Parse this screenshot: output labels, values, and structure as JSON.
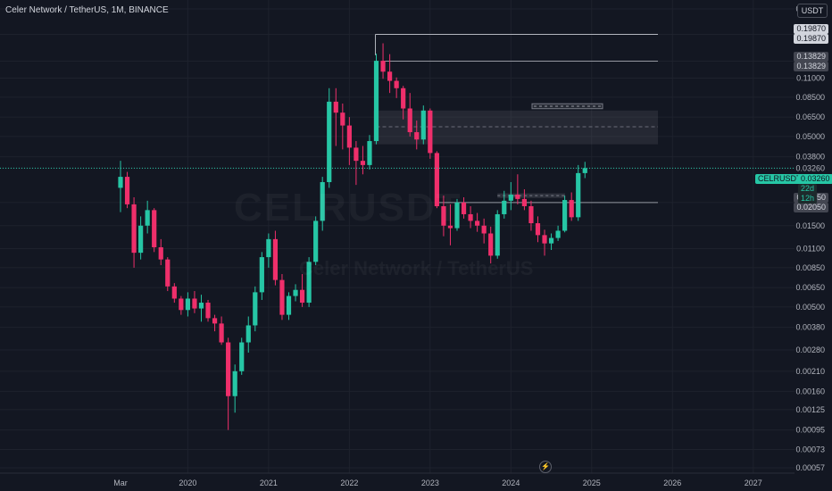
{
  "header": {
    "symbol_title": "Celer Network / TetherUS, 1M, BINANCE"
  },
  "currency_unit": "USDT",
  "watermark": {
    "ticker": "CELRUSDT",
    "name": "Celer Network / TetherUS"
  },
  "price_tag": {
    "symbol": "CELRUSDT",
    "price": "0.03260",
    "countdown": "22d 12h"
  },
  "level_tags": [
    {
      "value": "0.19870",
      "style": "light"
    },
    {
      "value": "0.19870",
      "style": "light"
    },
    {
      "value": "0.13829",
      "style": "dark"
    },
    {
      "value": "0.13829",
      "style": "dark"
    },
    {
      "value": "0.02050",
      "style": "dark"
    },
    {
      "value": "0.02050",
      "style": "dark"
    }
  ],
  "colors": {
    "up": "#26c6a5",
    "down": "#ef2f6b",
    "background": "#131722",
    "grid": "#1e222d",
    "last_price": "#26c6a5"
  },
  "chart_data": {
    "type": "candlestick",
    "title": "Celer Network / TetherUS, 1M, BINANCE",
    "y_scale": "log",
    "ylim": [
      0.00057,
      0.28
    ],
    "y_ticks": [
      "0.28000",
      "0.19870",
      "0.13829",
      "0.11000",
      "0.08500",
      "0.06500",
      "0.05000",
      "0.03800",
      "0.03260",
      "0.02050",
      "0.01500",
      "0.01100",
      "0.00850",
      "0.00650",
      "0.00500",
      "0.00380",
      "0.00280",
      "0.00210",
      "0.00160",
      "0.00125",
      "0.00095",
      "0.00073",
      "0.00057"
    ],
    "x_ticks": [
      "Mar",
      "2020",
      "2021",
      "2022",
      "2023",
      "2024",
      "2025",
      "2026",
      "2027"
    ],
    "x_start": "2019-03",
    "last_price": 0.0326,
    "horizontal_levels": [
      0.1987,
      0.13829,
      0.0205
    ],
    "zones": [
      {
        "low": 0.045,
        "high": 0.071,
        "mid": 0.057
      },
      {
        "low": 0.0218,
        "high": 0.0232
      },
      {
        "low": 0.0728,
        "high": 0.0778
      }
    ],
    "candles": [
      {
        "o": 0.025,
        "h": 0.036,
        "l": 0.018,
        "c": 0.029
      },
      {
        "o": 0.029,
        "h": 0.031,
        "l": 0.019,
        "c": 0.02
      },
      {
        "o": 0.02,
        "h": 0.022,
        "l": 0.0085,
        "c": 0.0104
      },
      {
        "o": 0.0104,
        "h": 0.017,
        "l": 0.0095,
        "c": 0.015
      },
      {
        "o": 0.015,
        "h": 0.021,
        "l": 0.0135,
        "c": 0.0185
      },
      {
        "o": 0.0185,
        "h": 0.019,
        "l": 0.0105,
        "c": 0.0112
      },
      {
        "o": 0.0112,
        "h": 0.0125,
        "l": 0.0088,
        "c": 0.0095
      },
      {
        "o": 0.0095,
        "h": 0.0098,
        "l": 0.0062,
        "c": 0.0066
      },
      {
        "o": 0.0066,
        "h": 0.0069,
        "l": 0.0053,
        "c": 0.0056
      },
      {
        "o": 0.0056,
        "h": 0.0058,
        "l": 0.0045,
        "c": 0.0048
      },
      {
        "o": 0.0048,
        "h": 0.0061,
        "l": 0.0044,
        "c": 0.0056
      },
      {
        "o": 0.0056,
        "h": 0.0062,
        "l": 0.0046,
        "c": 0.0049
      },
      {
        "o": 0.0049,
        "h": 0.0059,
        "l": 0.0041,
        "c": 0.0053
      },
      {
        "o": 0.0053,
        "h": 0.0055,
        "l": 0.0041,
        "c": 0.0043
      },
      {
        "o": 0.0043,
        "h": 0.0045,
        "l": 0.0036,
        "c": 0.004
      },
      {
        "o": 0.004,
        "h": 0.0044,
        "l": 0.003,
        "c": 0.0031
      },
      {
        "o": 0.0031,
        "h": 0.0033,
        "l": 0.00095,
        "c": 0.0015
      },
      {
        "o": 0.0015,
        "h": 0.0023,
        "l": 0.0012,
        "c": 0.0021
      },
      {
        "o": 0.0021,
        "h": 0.0033,
        "l": 0.002,
        "c": 0.0031
      },
      {
        "o": 0.0031,
        "h": 0.0044,
        "l": 0.0027,
        "c": 0.0039
      },
      {
        "o": 0.0039,
        "h": 0.0066,
        "l": 0.0036,
        "c": 0.0061
      },
      {
        "o": 0.0061,
        "h": 0.0105,
        "l": 0.0055,
        "c": 0.0098
      },
      {
        "o": 0.0098,
        "h": 0.0135,
        "l": 0.0085,
        "c": 0.0125
      },
      {
        "o": 0.0125,
        "h": 0.014,
        "l": 0.0067,
        "c": 0.0072
      },
      {
        "o": 0.0072,
        "h": 0.0078,
        "l": 0.0042,
        "c": 0.0045
      },
      {
        "o": 0.0045,
        "h": 0.0061,
        "l": 0.0042,
        "c": 0.0058
      },
      {
        "o": 0.0058,
        "h": 0.0068,
        "l": 0.0054,
        "c": 0.0063
      },
      {
        "o": 0.0063,
        "h": 0.0078,
        "l": 0.005,
        "c": 0.0053
      },
      {
        "o": 0.0053,
        "h": 0.0098,
        "l": 0.005,
        "c": 0.0092
      },
      {
        "o": 0.0092,
        "h": 0.017,
        "l": 0.0088,
        "c": 0.016
      },
      {
        "o": 0.016,
        "h": 0.029,
        "l": 0.014,
        "c": 0.027
      },
      {
        "o": 0.027,
        "h": 0.096,
        "l": 0.025,
        "c": 0.08
      },
      {
        "o": 0.08,
        "h": 0.096,
        "l": 0.044,
        "c": 0.069
      },
      {
        "o": 0.069,
        "h": 0.078,
        "l": 0.042,
        "c": 0.058
      },
      {
        "o": 0.058,
        "h": 0.065,
        "l": 0.034,
        "c": 0.043
      },
      {
        "o": 0.043,
        "h": 0.047,
        "l": 0.026,
        "c": 0.036
      },
      {
        "o": 0.036,
        "h": 0.044,
        "l": 0.03,
        "c": 0.034
      },
      {
        "o": 0.034,
        "h": 0.051,
        "l": 0.032,
        "c": 0.047
      },
      {
        "o": 0.047,
        "h": 0.153,
        "l": 0.045,
        "c": 0.139
      },
      {
        "o": 0.139,
        "h": 0.176,
        "l": 0.109,
        "c": 0.12
      },
      {
        "o": 0.12,
        "h": 0.152,
        "l": 0.09,
        "c": 0.106
      },
      {
        "o": 0.106,
        "h": 0.111,
        "l": 0.084,
        "c": 0.096
      },
      {
        "o": 0.096,
        "h": 0.099,
        "l": 0.063,
        "c": 0.073
      },
      {
        "o": 0.073,
        "h": 0.09,
        "l": 0.05,
        "c": 0.053
      },
      {
        "o": 0.053,
        "h": 0.062,
        "l": 0.042,
        "c": 0.048
      },
      {
        "o": 0.048,
        "h": 0.076,
        "l": 0.045,
        "c": 0.071
      },
      {
        "o": 0.071,
        "h": 0.073,
        "l": 0.037,
        "c": 0.04
      },
      {
        "o": 0.04,
        "h": 0.041,
        "l": 0.019,
        "c": 0.0195
      },
      {
        "o": 0.0195,
        "h": 0.0225,
        "l": 0.013,
        "c": 0.015
      },
      {
        "o": 0.015,
        "h": 0.02,
        "l": 0.0115,
        "c": 0.0145
      },
      {
        "o": 0.0145,
        "h": 0.0215,
        "l": 0.014,
        "c": 0.0205
      },
      {
        "o": 0.0205,
        "h": 0.022,
        "l": 0.0165,
        "c": 0.0175
      },
      {
        "o": 0.0175,
        "h": 0.0195,
        "l": 0.0145,
        "c": 0.016
      },
      {
        "o": 0.016,
        "h": 0.0178,
        "l": 0.0138,
        "c": 0.015
      },
      {
        "o": 0.015,
        "h": 0.0165,
        "l": 0.0118,
        "c": 0.0135
      },
      {
        "o": 0.0135,
        "h": 0.0148,
        "l": 0.009,
        "c": 0.01
      },
      {
        "o": 0.01,
        "h": 0.0185,
        "l": 0.0096,
        "c": 0.0175
      },
      {
        "o": 0.0175,
        "h": 0.024,
        "l": 0.0165,
        "c": 0.021
      },
      {
        "o": 0.021,
        "h": 0.027,
        "l": 0.0185,
        "c": 0.0228
      },
      {
        "o": 0.0228,
        "h": 0.03,
        "l": 0.02,
        "c": 0.0215
      },
      {
        "o": 0.0215,
        "h": 0.0245,
        "l": 0.0185,
        "c": 0.0195
      },
      {
        "o": 0.0195,
        "h": 0.021,
        "l": 0.014,
        "c": 0.0155
      },
      {
        "o": 0.0155,
        "h": 0.017,
        "l": 0.012,
        "c": 0.0132
      },
      {
        "o": 0.0132,
        "h": 0.0142,
        "l": 0.01,
        "c": 0.0118
      },
      {
        "o": 0.0118,
        "h": 0.0135,
        "l": 0.0108,
        "c": 0.0127
      },
      {
        "o": 0.0127,
        "h": 0.015,
        "l": 0.0122,
        "c": 0.014
      },
      {
        "o": 0.014,
        "h": 0.0225,
        "l": 0.0137,
        "c": 0.0212
      },
      {
        "o": 0.0212,
        "h": 0.0235,
        "l": 0.016,
        "c": 0.0168
      },
      {
        "o": 0.0168,
        "h": 0.034,
        "l": 0.016,
        "c": 0.0305
      },
      {
        "o": 0.0305,
        "h": 0.0355,
        "l": 0.0285,
        "c": 0.0326
      }
    ]
  }
}
